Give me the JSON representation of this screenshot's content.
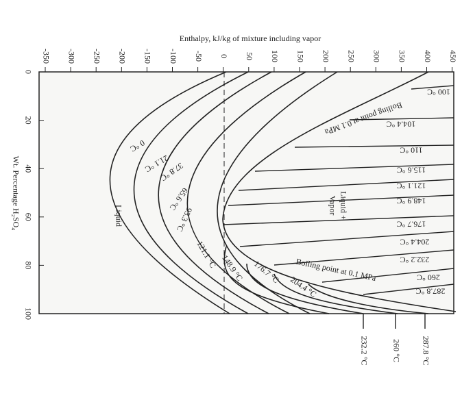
{
  "title": "Enthalpy, kJ/kg of mixture including vapor",
  "y_axis_title": "Wt. Percentage H₂SO₄",
  "x_ticks": [
    -350,
    -300,
    -250,
    -200,
    -150,
    -100,
    -50,
    0,
    50,
    100,
    150,
    200,
    250,
    300,
    350,
    400,
    450
  ],
  "y_ticks": [
    0,
    20,
    40,
    60,
    80,
    100
  ],
  "isotherm_labels": [
    "0 °C",
    "21.1 °C",
    "37.8 °C",
    "65.6 °C",
    "93.3 °C",
    "121.1 °C",
    "148.9 °C",
    "176.7 °C",
    "204.4 °C"
  ],
  "tie_labels": [
    "100 °C",
    "104.4 °C",
    "110 °C",
    "115.6 °C",
    "121.1 °C",
    "148.9 °C",
    "176.7 °C",
    "204.4 °C",
    "232.2 °C",
    "260 °C",
    "287.8 °C"
  ],
  "bottom_labels": [
    "232.2 °C",
    "260 °C",
    "287.8 °C"
  ],
  "boiling_labels": [
    "Boiling point at 0.1 MPa",
    "Boiling point at 0.1 MPa"
  ],
  "regions": {
    "liquid": "Liquid",
    "two_phase": [
      "Liquid +",
      "Vapor"
    ]
  }
}
